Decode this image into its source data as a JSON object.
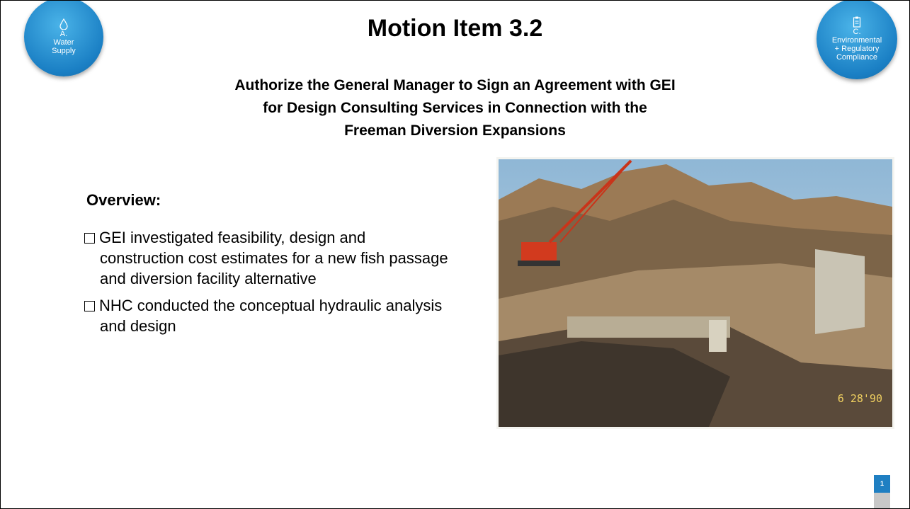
{
  "badge_left": {
    "lines": [
      "A.",
      "Water",
      "Supply"
    ]
  },
  "badge_right": {
    "lines": [
      "C.",
      "Environmental",
      "+ Regulatory",
      "Compliance"
    ]
  },
  "title": "Motion Item 3.2",
  "subtitle": [
    "Authorize the General Manager to Sign an Agreement with GEI",
    "for Design Consulting Services in Connection with the",
    "Freeman Diversion Expansions"
  ],
  "overview": {
    "heading": "Overview:",
    "bullets": [
      "GEI investigated feasibility, design and construction cost estimates for a new fish passage and diversion facility alternative",
      "NHC conducted the conceptual hydraulic analysis and design"
    ]
  },
  "photo": {
    "date_stamp": "6 28'90"
  },
  "page_number": "1"
}
